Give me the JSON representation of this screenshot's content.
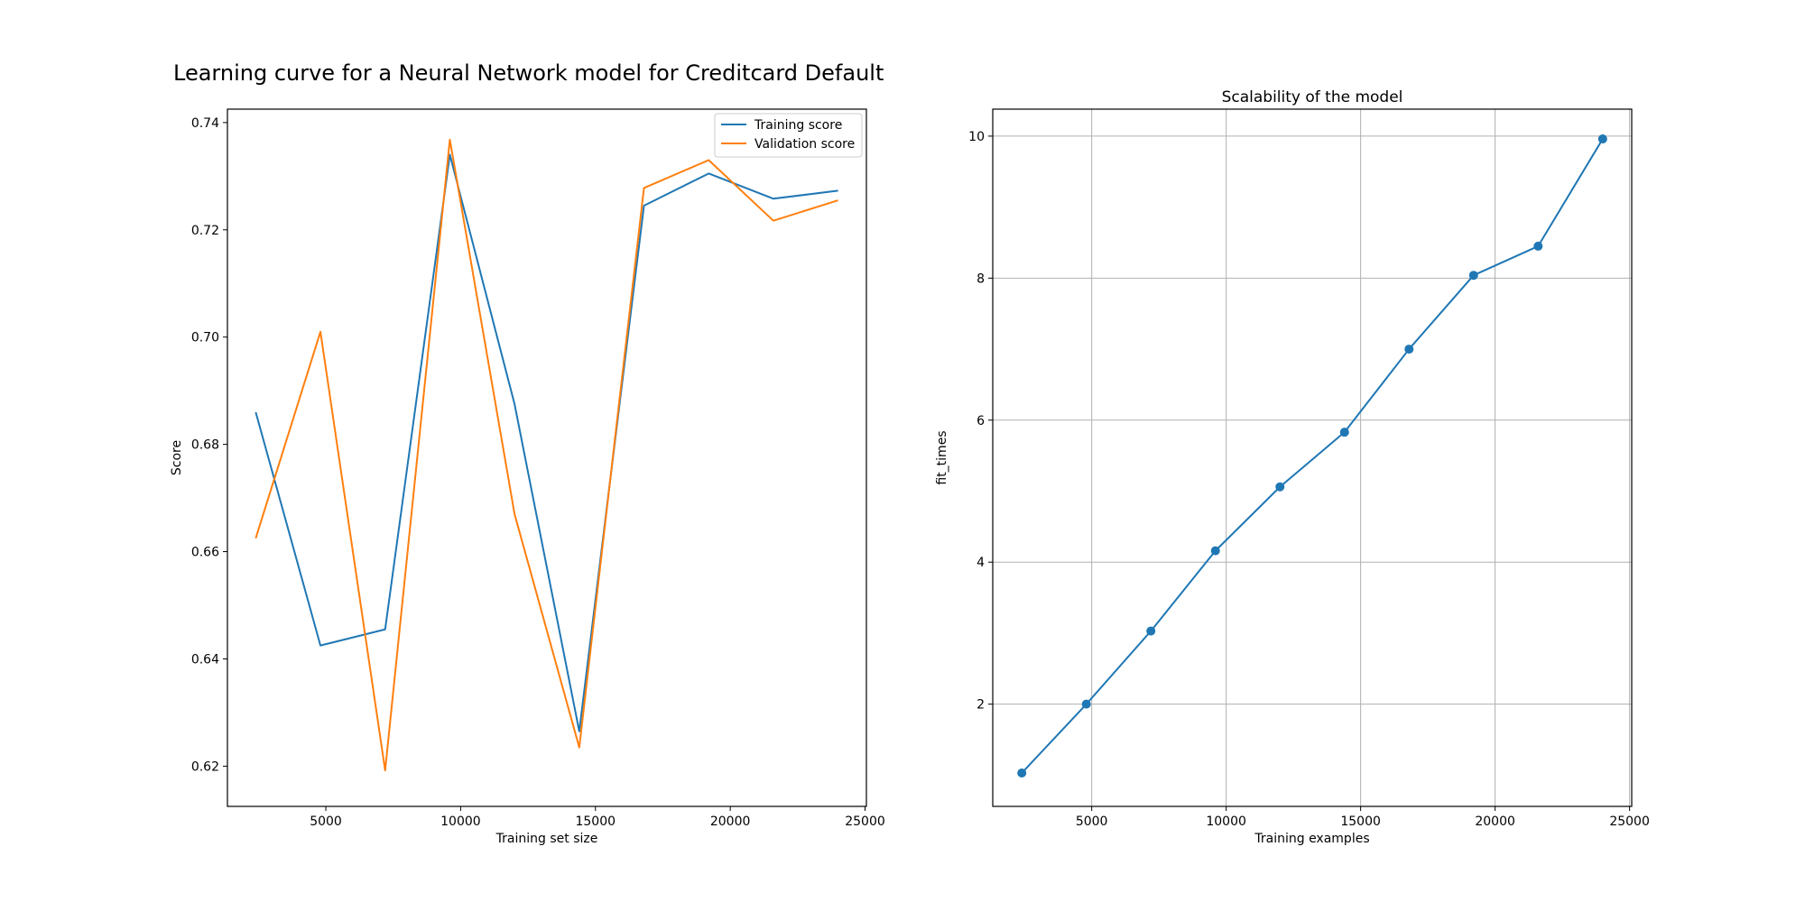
{
  "figure": {
    "suptitle": "Learning curve for a Neural Network model for Creditcard Default"
  },
  "chart_data": [
    {
      "type": "line",
      "title": "",
      "xlabel": "Training set size",
      "ylabel": "Score",
      "xlim": [
        1350,
        25050
      ],
      "ylim": [
        0.6125,
        0.7425
      ],
      "xticks": [
        5000,
        10000,
        15000,
        20000,
        25000
      ],
      "yticks": [
        0.62,
        0.64,
        0.66,
        0.68,
        0.7,
        0.72,
        0.74
      ],
      "ytick_decimals": 2,
      "grid": false,
      "legend": "top-right",
      "x": [
        2400,
        4800,
        7200,
        9600,
        12000,
        14400,
        16800,
        19200,
        21600,
        24000
      ],
      "series": [
        {
          "name": "Training score",
          "color": "#1f77b4",
          "values": [
            0.686,
            0.6425,
            0.6455,
            0.734,
            0.6875,
            0.6265,
            0.7245,
            0.7305,
            0.7258,
            0.7273
          ]
        },
        {
          "name": "Validation score",
          "color": "#ff7f0e",
          "values": [
            0.6625,
            0.701,
            0.6192,
            0.7368,
            0.667,
            0.6235,
            0.7278,
            0.733,
            0.7217,
            0.7255
          ]
        }
      ]
    },
    {
      "type": "line",
      "title": "Scalability of the model",
      "xlabel": "Training examples",
      "ylabel": "fit_times",
      "xlim": [
        1320,
        25080
      ],
      "ylim": [
        0.56,
        10.38
      ],
      "xticks": [
        5000,
        10000,
        15000,
        20000,
        25000
      ],
      "yticks": [
        2,
        4,
        6,
        8,
        10
      ],
      "ytick_decimals": 0,
      "grid": true,
      "markers": true,
      "x": [
        2400,
        4800,
        7200,
        9600,
        12000,
        14400,
        16800,
        19200,
        21600,
        24000
      ],
      "series": [
        {
          "color": "#1f77b4",
          "values": [
            1.03,
            2.0,
            3.03,
            4.16,
            5.06,
            5.83,
            7.0,
            8.04,
            8.45,
            9.96
          ]
        }
      ]
    }
  ]
}
